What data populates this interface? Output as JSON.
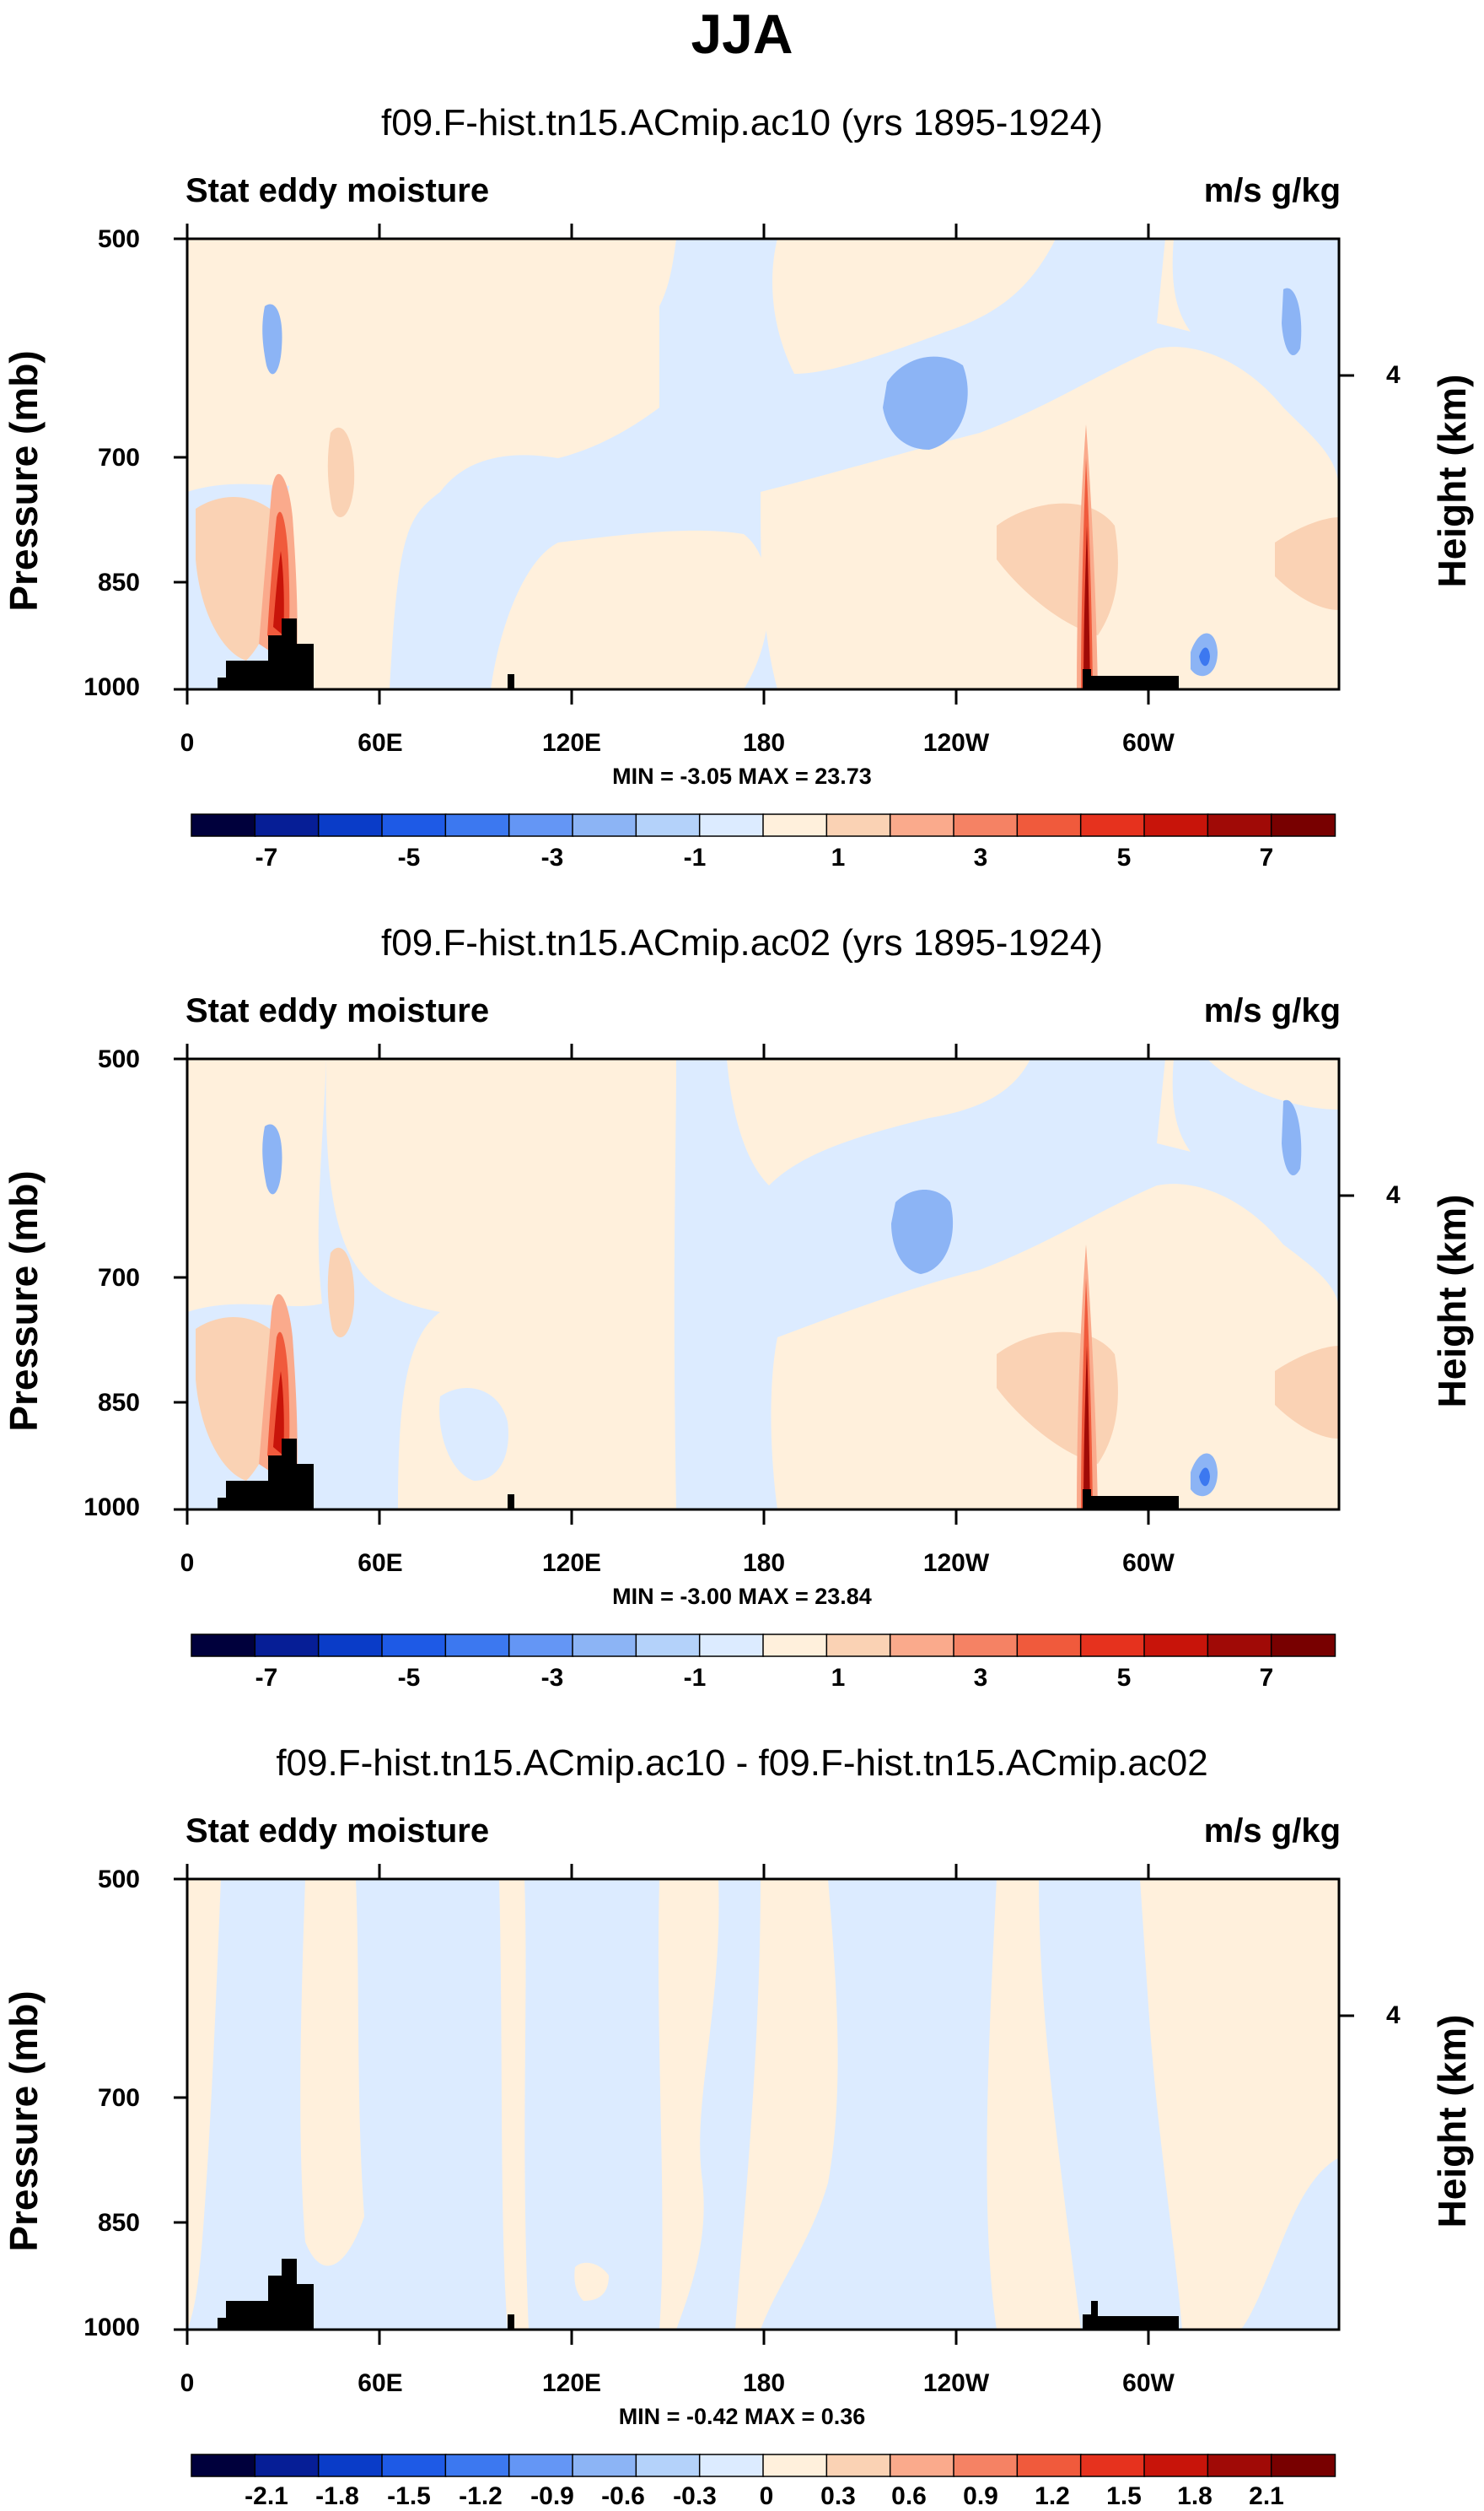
{
  "title": "JJA",
  "colors": {
    "palette_18": [
      "#00003c",
      "#061e96",
      "#0a3cc8",
      "#1e5ae6",
      "#3c78f0",
      "#6496f5",
      "#8cb4f5",
      "#b4d2fa",
      "#dcebff",
      "#fff0dc",
      "#fad2b4",
      "#faaa8c",
      "#f58264",
      "#f05a3c",
      "#e6321e",
      "#c8140a",
      "#a00a06",
      "#780000"
    ],
    "land": "#000000"
  },
  "chart_data": [
    {
      "type": "contour",
      "title": "f09.F-hist.tn15.ACmip.ac10 (yrs 1895-1924)",
      "left_string": "Stat eddy moisture",
      "right_string": "m/s g/kg",
      "ylabel": "Pressure (mb)",
      "ylabel_right": "Height (km)",
      "y_ticks": [
        "500",
        "700",
        "850",
        "1000"
      ],
      "height_ticks": [
        "4"
      ],
      "x_ticks": [
        "0",
        "60E",
        "120E",
        "180",
        "120W",
        "60W"
      ],
      "xlim": [
        0,
        360
      ],
      "ylim": [
        1000,
        500
      ],
      "min_label": "MIN =  -3.05  MAX =  23.73",
      "colorbar_labels": [
        "-7",
        "-5",
        "-3",
        "-1",
        "1",
        "3",
        "5",
        "7"
      ],
      "colorbar_bins": 16
    },
    {
      "type": "contour",
      "title": "f09.F-hist.tn15.ACmip.ac02 (yrs 1895-1924)",
      "left_string": "Stat eddy moisture",
      "right_string": "m/s g/kg",
      "ylabel": "Pressure (mb)",
      "ylabel_right": "Height (km)",
      "y_ticks": [
        "500",
        "700",
        "850",
        "1000"
      ],
      "height_ticks": [
        "4"
      ],
      "x_ticks": [
        "0",
        "60E",
        "120E",
        "180",
        "120W",
        "60W"
      ],
      "xlim": [
        0,
        360
      ],
      "ylim": [
        1000,
        500
      ],
      "min_label": "MIN =  -3.00  MAX =  23.84",
      "colorbar_labels": [
        "-7",
        "-5",
        "-3",
        "-1",
        "1",
        "3",
        "5",
        "7"
      ],
      "colorbar_bins": 16
    },
    {
      "type": "contour",
      "title": "f09.F-hist.tn15.ACmip.ac10 - f09.F-hist.tn15.ACmip.ac02",
      "left_string": "Stat eddy moisture",
      "right_string": "m/s g/kg",
      "ylabel": "Pressure (mb)",
      "ylabel_right": "Height (km)",
      "y_ticks": [
        "500",
        "700",
        "850",
        "1000"
      ],
      "height_ticks": [
        "4"
      ],
      "x_ticks": [
        "0",
        "60E",
        "120E",
        "180",
        "120W",
        "60W"
      ],
      "xlim": [
        0,
        360
      ],
      "ylim": [
        1000,
        500
      ],
      "min_label": "MIN =  -0.42  MAX =   0.36",
      "colorbar_labels": [
        "-2.1",
        "-1.8",
        "-1.5",
        "-1.2",
        "-0.9",
        "-0.6",
        "-0.3",
        "0",
        "0.3",
        "0.6",
        "0.9",
        "1.2",
        "1.5",
        "1.8",
        "2.1"
      ],
      "colorbar_bins": 16
    }
  ]
}
